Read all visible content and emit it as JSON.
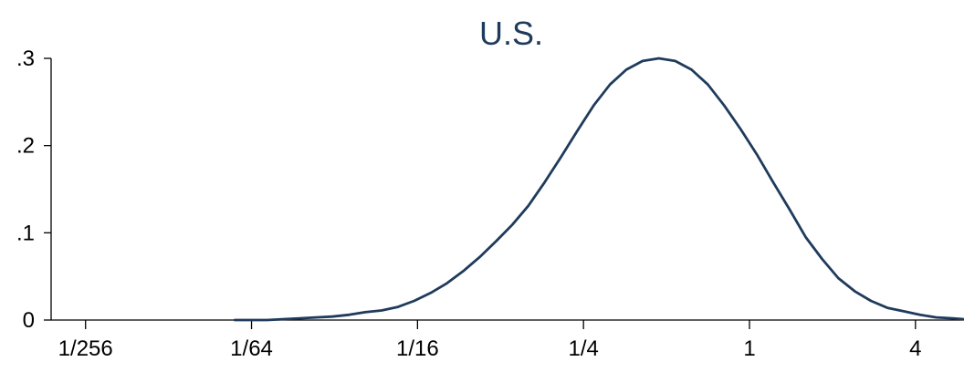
{
  "chart_data": {
    "type": "line",
    "title": "U.S.",
    "xlabel": "",
    "ylabel": "",
    "x_scale": "log2",
    "xlim": [
      0.00293,
      6.0
    ],
    "ylim": [
      0,
      0.3
    ],
    "grid": false,
    "x_ticks": [
      {
        "value": 0.00390625,
        "label": "1/256"
      },
      {
        "value": 0.015625,
        "label": "1/64"
      },
      {
        "value": 0.0625,
        "label": "1/16"
      },
      {
        "value": 0.25,
        "label": "1/4"
      },
      {
        "value": 1,
        "label": "1"
      },
      {
        "value": 4,
        "label": "4"
      }
    ],
    "y_ticks": [
      {
        "value": 0,
        "label": "0"
      },
      {
        "value": 0.1,
        "label": ".1"
      },
      {
        "value": 0.2,
        "label": ".2"
      },
      {
        "value": 0.3,
        "label": ".3"
      }
    ],
    "series": [
      {
        "color": "#1f3b5c",
        "x": [
          0.0136,
          0.0156,
          0.0178,
          0.0205,
          0.0234,
          0.0268,
          0.0307,
          0.0352,
          0.0404,
          0.0463,
          0.0531,
          0.0608,
          0.0697,
          0.0798,
          0.0915,
          0.1049,
          0.1202,
          0.1377,
          0.1578,
          0.1808,
          0.2072,
          0.2375,
          0.2722,
          0.3119,
          0.3574,
          0.4096,
          0.4694,
          0.5379,
          0.6164,
          0.7064,
          0.8095,
          0.9277,
          1.0631,
          1.2183,
          1.3962,
          1.6,
          1.8336,
          2.1013,
          2.408,
          2.7596,
          3.1625,
          3.6242,
          4.1533,
          4.7596,
          5.4545,
          6.0
        ],
        "y": [
          0.0,
          0.0,
          0.0,
          0.001,
          0.002,
          0.003,
          0.004,
          0.006,
          0.009,
          0.011,
          0.015,
          0.022,
          0.031,
          0.042,
          0.056,
          0.072,
          0.09,
          0.109,
          0.131,
          0.158,
          0.187,
          0.217,
          0.246,
          0.27,
          0.287,
          0.297,
          0.3,
          0.297,
          0.287,
          0.27,
          0.246,
          0.219,
          0.19,
          0.158,
          0.127,
          0.095,
          0.07,
          0.048,
          0.033,
          0.022,
          0.014,
          0.01,
          0.006,
          0.003,
          0.002,
          0.001
        ]
      }
    ]
  }
}
